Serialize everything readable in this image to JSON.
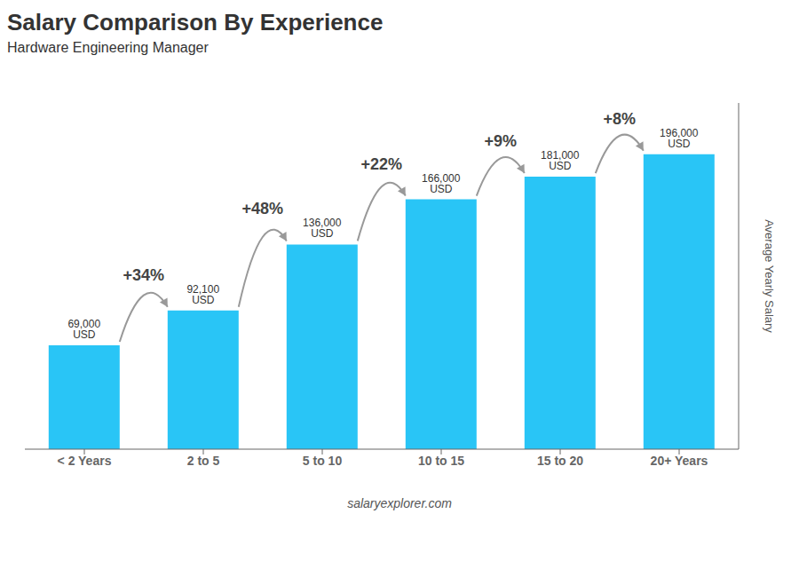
{
  "chart_data": {
    "type": "bar",
    "title": "Salary Comparison By Experience",
    "subtitle": "Hardware Engineering Manager",
    "categories": [
      "< 2 Years",
      "2 to 5",
      "5 to 10",
      "10 to 15",
      "15 to 20",
      "20+ Years"
    ],
    "values": [
      69000,
      92100,
      136000,
      166000,
      181000,
      196000
    ],
    "value_labels": [
      "69,000 USD",
      "92,100 USD",
      "136,000 USD",
      "166,000 USD",
      "181,000 USD",
      "196,000 USD"
    ],
    "data_labels": true,
    "annotations": [
      "+34%",
      "+48%",
      "+22%",
      "+9%",
      "+8%"
    ],
    "ylabel": "Average Yearly Salary",
    "watermark": "salaryexplorer.com",
    "color": "#29c5f6",
    "ylim": [
      0,
      230000
    ],
    "tick_labels": "x"
  }
}
